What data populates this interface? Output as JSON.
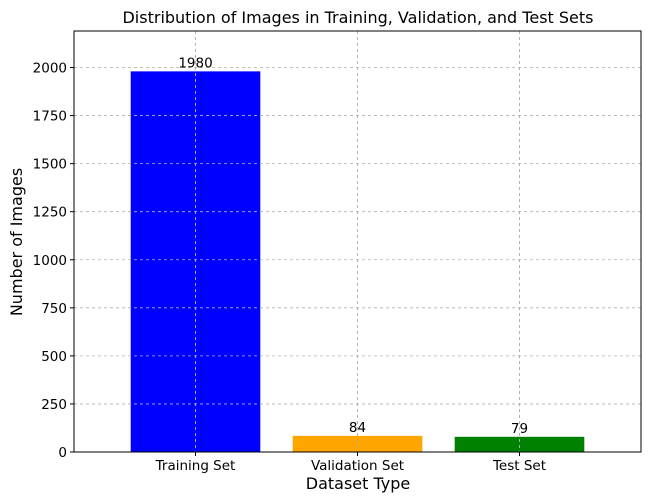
{
  "chart_data": {
    "type": "bar",
    "title": "Distribution of Images in Training, Validation, and Test Sets",
    "xlabel": "Dataset Type",
    "ylabel": "Number of Images",
    "categories": [
      "Training Set",
      "Validation Set",
      "Test Set"
    ],
    "values": [
      1980,
      84,
      79
    ],
    "data_labels": [
      "1980",
      "84",
      "79"
    ],
    "colors": [
      "#0000ff",
      "#ffa500",
      "#008000"
    ],
    "ylim": [
      0,
      2190
    ],
    "yticks": [
      0,
      250,
      500,
      750,
      1000,
      1250,
      1500,
      1750,
      2000
    ],
    "ytick_labels": [
      "0",
      "250",
      "500",
      "750",
      "1000",
      "1250",
      "1500",
      "1750",
      "2000"
    ],
    "grid": true
  }
}
